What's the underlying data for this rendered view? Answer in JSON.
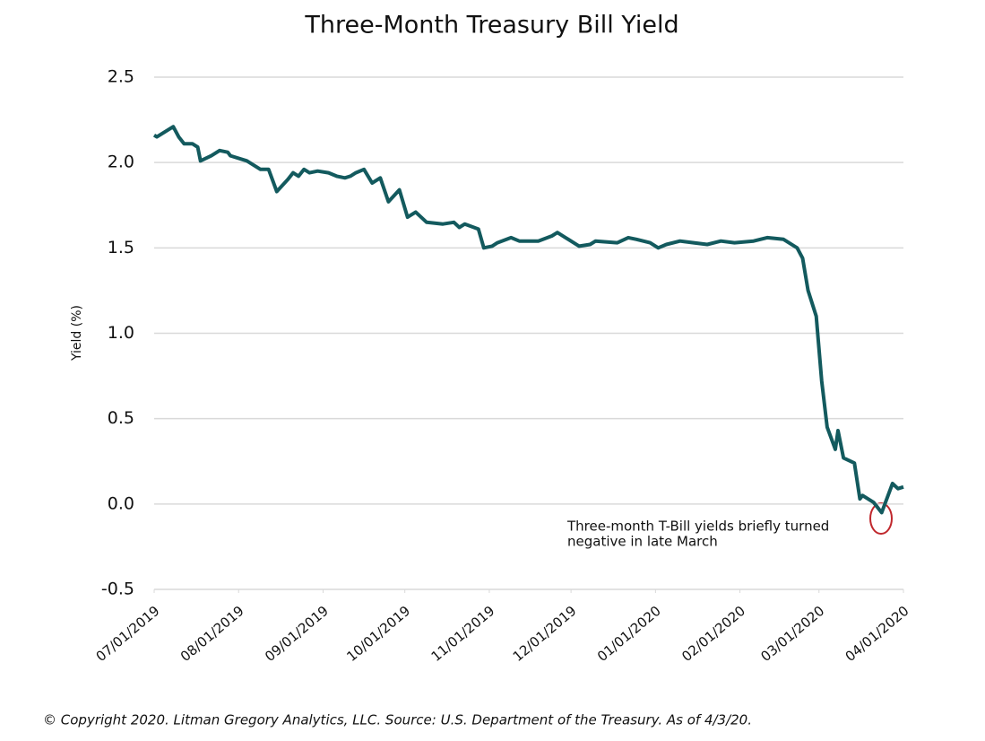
{
  "chart_data": {
    "type": "line",
    "title": "Three-Month Treasury Bill Yield",
    "y_label": "Yield (%)",
    "annotation": [
      "Three-month T-Bill yields briefly turned",
      "negative in late March"
    ],
    "source": "© Copyright 2020. Litman Gregory Analytics, LLC. Source: U.S. Department of the Treasury. As of 4/3/20.",
    "x": [
      "2019-07-01",
      "2019-07-02",
      "2019-07-08",
      "2019-07-10",
      "2019-07-12",
      "2019-07-15",
      "2019-07-17",
      "2019-07-18",
      "2019-07-22",
      "2019-07-25",
      "2019-07-28",
      "2019-07-29",
      "2019-08-04",
      "2019-08-09",
      "2019-08-12",
      "2019-08-15",
      "2019-08-19",
      "2019-08-21",
      "2019-08-23",
      "2019-08-25",
      "2019-08-27",
      "2019-08-30",
      "2019-09-03",
      "2019-09-06",
      "2019-09-09",
      "2019-09-11",
      "2019-09-13",
      "2019-09-16",
      "2019-09-19",
      "2019-09-22",
      "2019-09-25",
      "2019-09-29",
      "2019-10-02",
      "2019-10-05",
      "2019-10-09",
      "2019-10-15",
      "2019-10-19",
      "2019-10-21",
      "2019-10-23",
      "2019-10-28",
      "2019-10-30",
      "2019-11-02",
      "2019-11-04",
      "2019-11-09",
      "2019-11-12",
      "2019-11-19",
      "2019-11-24",
      "2019-11-26",
      "2019-11-29",
      "2019-12-04",
      "2019-12-08",
      "2019-12-10",
      "2019-12-18",
      "2019-12-22",
      "2019-12-25",
      "2019-12-30",
      "2020-01-02",
      "2020-01-05",
      "2020-01-10",
      "2020-01-15",
      "2020-01-20",
      "2020-01-25",
      "2020-01-30",
      "2020-02-06",
      "2020-02-11",
      "2020-02-17",
      "2020-02-22",
      "2020-02-24",
      "2020-02-26",
      "2020-02-29",
      "2020-03-02",
      "2020-03-04",
      "2020-03-07",
      "2020-03-08",
      "2020-03-10",
      "2020-03-14",
      "2020-03-16",
      "2020-03-17",
      "2020-03-21",
      "2020-03-24",
      "2020-03-28",
      "2020-03-30",
      "2020-04-01"
    ],
    "series": [
      {
        "name": "Three-Month Treasury Bill Yield",
        "color": "#135a5e",
        "values": [
          2.16,
          2.15,
          2.21,
          2.15,
          2.11,
          2.11,
          2.09,
          2.01,
          2.04,
          2.07,
          2.06,
          2.04,
          2.01,
          1.96,
          1.96,
          1.83,
          1.9,
          1.94,
          1.92,
          1.96,
          1.94,
          1.95,
          1.94,
          1.92,
          1.91,
          1.92,
          1.94,
          1.96,
          1.88,
          1.91,
          1.77,
          1.84,
          1.68,
          1.71,
          1.65,
          1.64,
          1.65,
          1.62,
          1.64,
          1.61,
          1.5,
          1.51,
          1.53,
          1.56,
          1.54,
          1.54,
          1.57,
          1.59,
          1.56,
          1.51,
          1.52,
          1.54,
          1.53,
          1.56,
          1.55,
          1.53,
          1.5,
          1.52,
          1.54,
          1.53,
          1.52,
          1.54,
          1.53,
          1.54,
          1.56,
          1.55,
          1.5,
          1.44,
          1.25,
          1.1,
          0.72,
          0.45,
          0.32,
          0.43,
          0.27,
          0.24,
          0.03,
          0.05,
          0.01,
          -0.05,
          0.12,
          0.09,
          0.1
        ]
      }
    ],
    "xlim": [
      "2019-07-01",
      "2020-04-01"
    ],
    "xticks": [
      {
        "value": "2019-07-01",
        "label": "07/01/2019"
      },
      {
        "value": "2019-08-01",
        "label": "08/01/2019"
      },
      {
        "value": "2019-09-01",
        "label": "09/01/2019"
      },
      {
        "value": "2019-10-01",
        "label": "10/01/2019"
      },
      {
        "value": "2019-11-01",
        "label": "11/01/2019"
      },
      {
        "value": "2019-12-01",
        "label": "12/01/2019"
      },
      {
        "value": "2020-01-01",
        "label": "01/01/2020"
      },
      {
        "value": "2020-02-01",
        "label": "02/01/2020"
      },
      {
        "value": "2020-03-01",
        "label": "03/01/2020"
      },
      {
        "value": "2020-04-01",
        "label": "04/01/2020"
      }
    ],
    "ylim": [
      -0.5,
      2.5
    ],
    "yticks": [
      -0.5,
      {
        "value": 0,
        "label": "0.0"
      },
      0.5,
      {
        "value": 1,
        "label": "1.0"
      },
      1.5,
      {
        "value": 2,
        "label": "2.0"
      },
      2.5
    ],
    "grid": true
  }
}
